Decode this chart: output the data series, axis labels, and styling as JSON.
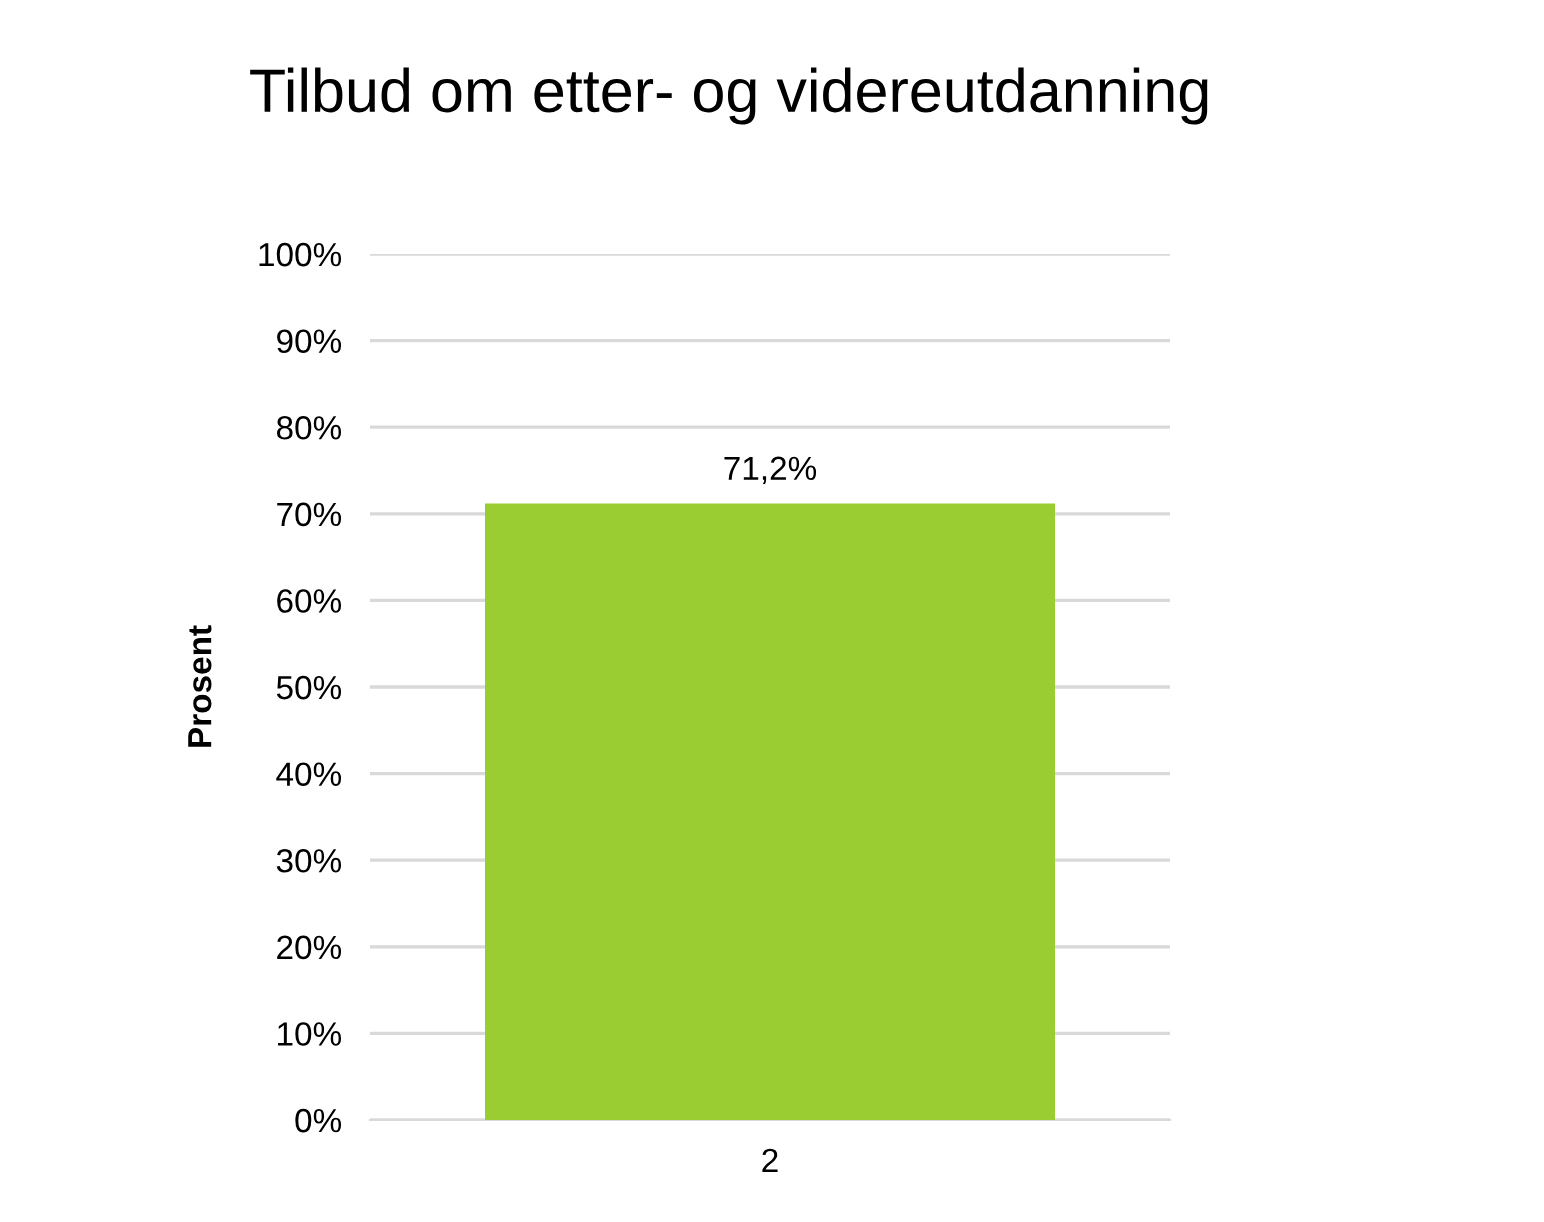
{
  "chart_data": {
    "type": "bar",
    "title": "Tilbud om etter- og videreutdanning",
    "ylabel": "Prosent",
    "categories": [
      "2"
    ],
    "values": [
      71.2
    ],
    "value_labels": [
      "71,2%"
    ],
    "color": "#9acd32",
    "ylim": [
      0,
      100
    ],
    "yticks": [
      {
        "value": 0,
        "label": "0%"
      },
      {
        "value": 10,
        "label": "10%"
      },
      {
        "value": 20,
        "label": "20%"
      },
      {
        "value": 30,
        "label": "30%"
      },
      {
        "value": 40,
        "label": "40%"
      },
      {
        "value": 50,
        "label": "50%"
      },
      {
        "value": 60,
        "label": "60%"
      },
      {
        "value": 70,
        "label": "70%"
      },
      {
        "value": 80,
        "label": "80%"
      },
      {
        "value": 90,
        "label": "90%"
      },
      {
        "value": 100,
        "label": "100%"
      }
    ],
    "grid": "y",
    "legend": false
  }
}
